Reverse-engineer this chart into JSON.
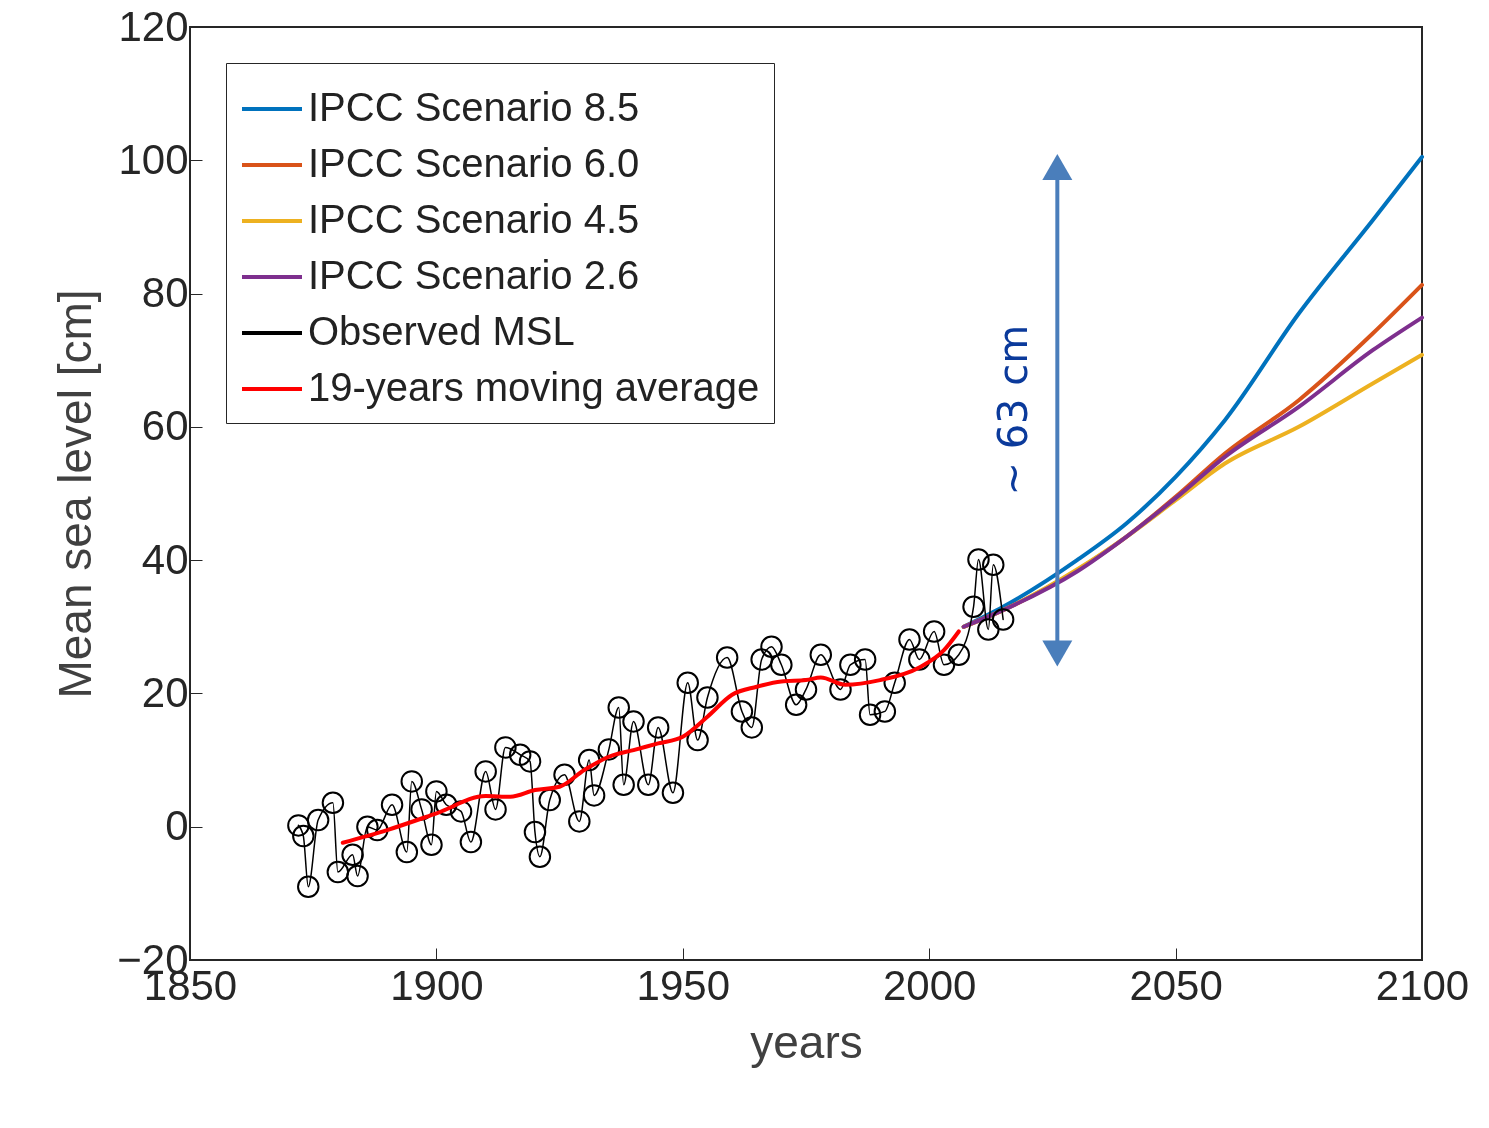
{
  "chart_data": {
    "type": "line",
    "xlabel": "years",
    "ylabel": "Mean sea level [cm]",
    "xlim": [
      1850,
      2100
    ],
    "ylim": [
      -20,
      120
    ],
    "xticks": [
      1850,
      1900,
      1950,
      2000,
      2050,
      2100
    ],
    "yticks": [
      -20,
      0,
      20,
      40,
      60,
      80,
      100,
      120
    ],
    "grid": false,
    "legend": "top left",
    "series": [
      {
        "name": "IPCC Scenario 8.5",
        "color": "#0072bd",
        "x": [
          2007,
          2015,
          2030,
          2040,
          2050,
          2060,
          2075,
          2090,
          2100
        ],
        "values": [
          30,
          33,
          40,
          45.5,
          52.5,
          61,
          77,
          91,
          100.5
        ]
      },
      {
        "name": "IPCC Scenario 6.0",
        "color": "#d95319",
        "x": [
          2007,
          2015,
          2030,
          2040,
          2050,
          2060,
          2075,
          2090,
          2100
        ],
        "values": [
          30,
          32.5,
          38.5,
          43.5,
          49.5,
          56,
          64,
          74,
          81.3
        ]
      },
      {
        "name": "IPCC Scenario 4.5",
        "color": "#edb120",
        "x": [
          2007,
          2015,
          2030,
          2040,
          2050,
          2060,
          2075,
          2090,
          2100
        ],
        "values": [
          30,
          32.5,
          38.6,
          43.5,
          49,
          54.5,
          60,
          66.5,
          70.8
        ]
      },
      {
        "name": "IPCC Scenario 2.6",
        "color": "#7e2f8e",
        "x": [
          2007,
          2015,
          2030,
          2040,
          2050,
          2060,
          2075,
          2090,
          2100
        ],
        "values": [
          30,
          32.5,
          38.3,
          43.5,
          49.3,
          55.5,
          63,
          71.5,
          76.4
        ]
      },
      {
        "name": "Observed MSL",
        "color": "#000000",
        "marker": "circle",
        "x": [
          1872,
          1873,
          1874,
          1876,
          1879,
          1880,
          1883,
          1884,
          1886,
          1888,
          1891,
          1894,
          1895,
          1897,
          1899,
          1900,
          1902,
          1905,
          1907,
          1910,
          1912,
          1914,
          1917,
          1919,
          1920,
          1921,
          1923,
          1926,
          1929,
          1931,
          1932,
          1935,
          1937,
          1938,
          1940,
          1943,
          1945,
          1948,
          1951,
          1953,
          1955,
          1959,
          1962,
          1964,
          1966,
          1968,
          1970,
          1973,
          1975,
          1978,
          1982,
          1984,
          1987,
          1988,
          1991,
          1993,
          1996,
          1998,
          2001,
          2003,
          2006,
          2009,
          2010,
          2012,
          2013,
          2015
        ],
        "values": [
          0.2,
          -1.4,
          -9,
          1,
          3.6,
          -6.8,
          -4.2,
          -7.4,
          0,
          -0.5,
          3.3,
          -3.8,
          6.8,
          2.6,
          -2.7,
          5.3,
          3.3,
          2.3,
          -2.3,
          8.3,
          2.6,
          11.9,
          10.8,
          9.8,
          -0.8,
          -4.5,
          4,
          7.8,
          0.8,
          10,
          4.7,
          11.6,
          17.9,
          6.3,
          15.8,
          6.3,
          14.9,
          5.1,
          21.6,
          13,
          19.4,
          25.4,
          17.3,
          14.9,
          25.1,
          27,
          24.3,
          18.3,
          20.6,
          25.8,
          20.6,
          24.3,
          25.1,
          16.8,
          17.3,
          21.6,
          28.1,
          25.1,
          29.3,
          24.3,
          25.8,
          33,
          40.1,
          29.6,
          39.3,
          31.1
        ]
      },
      {
        "name": "19-years moving average",
        "color": "#ff0000",
        "x": [
          1881,
          1890,
          1900,
          1910,
          1915,
          1920,
          1925,
          1930,
          1935,
          1940,
          1945,
          1950,
          1955,
          1960,
          1965,
          1970,
          1975,
          1978,
          1983,
          1990,
          1998,
          2003,
          2006
        ],
        "values": [
          -2.4,
          -0.5,
          2,
          4.6,
          4.5,
          5.5,
          6,
          8.5,
          10.5,
          11.5,
          12.5,
          13.5,
          16.5,
          19.8,
          21,
          21.8,
          22,
          22.4,
          21.3,
          22,
          23.9,
          26.5,
          29.3
        ]
      },
      {
        "color": "#4a7ebb",
        "marker": "triangle",
        "x": [
          2026,
          2026
        ],
        "values": [
          26,
          99
        ]
      }
    ],
    "annotations": [
      "~ 63 cm"
    ]
  }
}
